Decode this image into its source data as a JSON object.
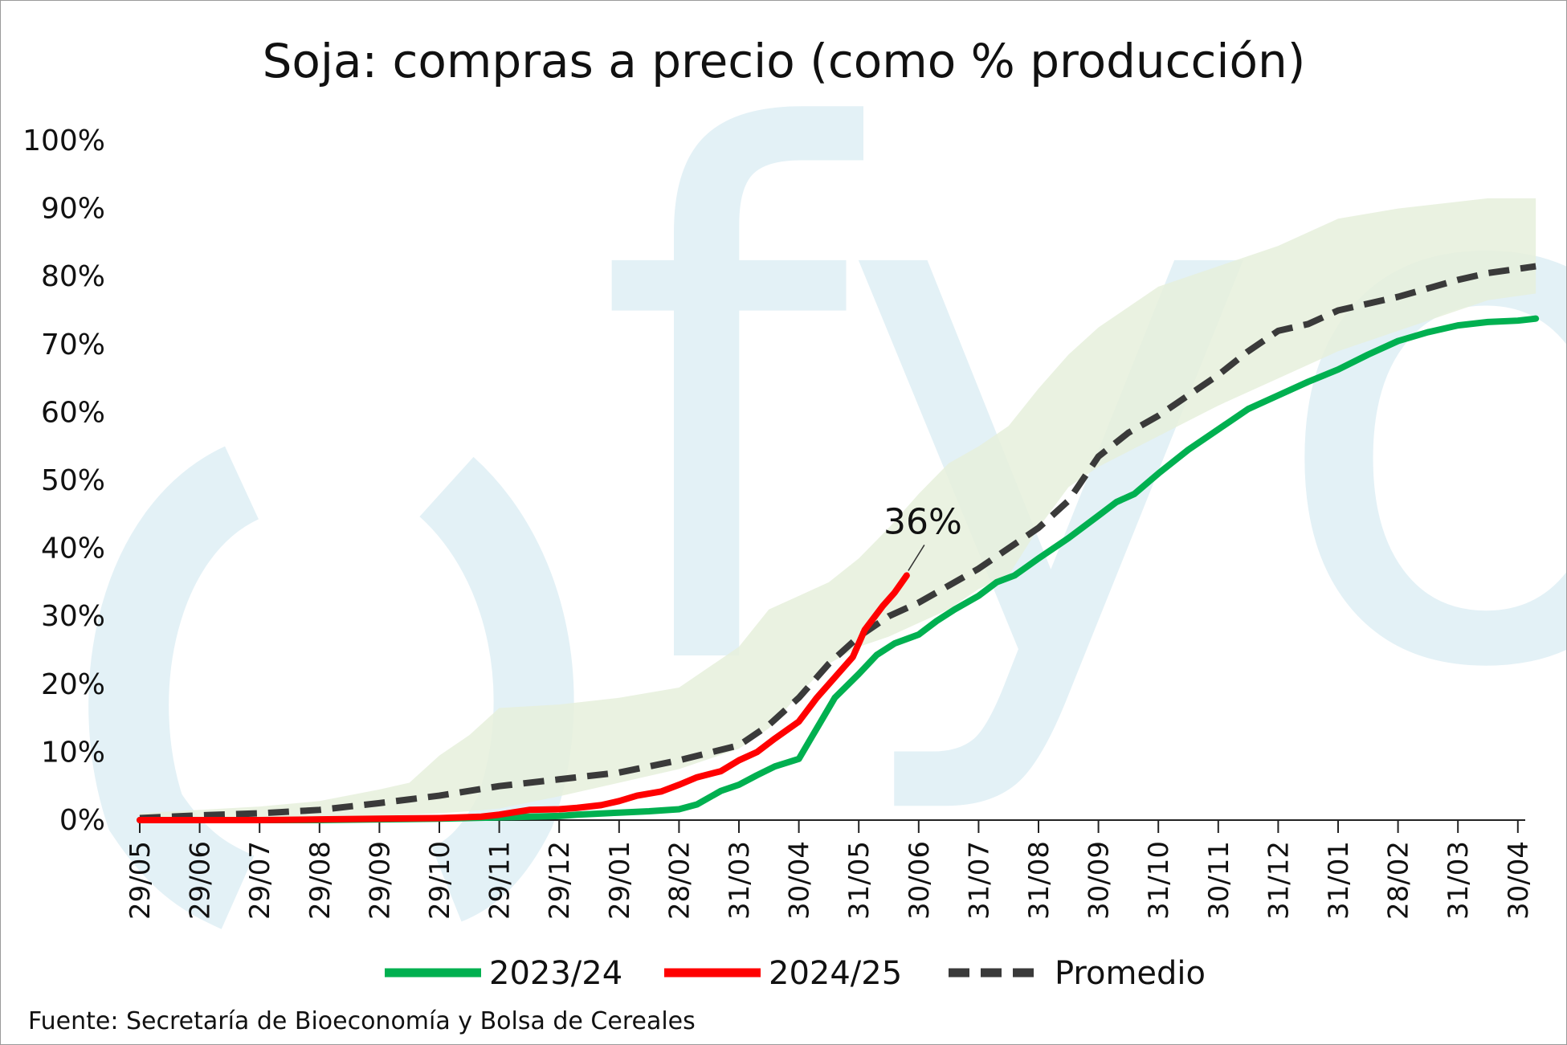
{
  "chart_data": {
    "type": "line",
    "title": "Soja: compras a precio (como % producción)",
    "y_ticks": [
      "0%",
      "10%",
      "20%",
      "30%",
      "40%",
      "50%",
      "60%",
      "70%",
      "80%",
      "90%",
      "100%"
    ],
    "ylim": [
      0,
      100
    ],
    "x_ticks": [
      "29/05",
      "29/06",
      "29/07",
      "29/08",
      "29/09",
      "29/10",
      "29/11",
      "29/12",
      "29/01",
      "28/02",
      "31/03",
      "30/04",
      "31/05",
      "30/06",
      "31/07",
      "31/08",
      "30/09",
      "31/10",
      "30/11",
      "31/12",
      "31/01",
      "28/02",
      "31/03",
      "30/04"
    ],
    "xlim": [
      0,
      23.3
    ],
    "grid": false,
    "legend_position": "bottom",
    "watermark": "fyo",
    "band": {
      "color": "#e6f0dc",
      "x": [
        0,
        1,
        2,
        3,
        4,
        4.5,
        5,
        5.5,
        6,
        7,
        8,
        9,
        10,
        10.5,
        11,
        11.5,
        12,
        12.5,
        13,
        13.5,
        14,
        14.5,
        15,
        15.5,
        16,
        17,
        18,
        19,
        20,
        21,
        22,
        22.5,
        23.3
      ],
      "lower": [
        0.2,
        0.3,
        0.4,
        0.5,
        0.6,
        0.8,
        1.0,
        1.3,
        1.7,
        3.5,
        5.5,
        7.5,
        10.5,
        13.5,
        18.5,
        23,
        25.5,
        27,
        29,
        31,
        34,
        36,
        43,
        49,
        52,
        56.5,
        61,
        65,
        69,
        72,
        75,
        76.5,
        77.5
      ],
      "upper": [
        1.0,
        1.5,
        2.0,
        2.8,
        4.5,
        5.5,
        9.5,
        12.5,
        16.5,
        17,
        18,
        19.5,
        25.5,
        31,
        33,
        35,
        38.5,
        43,
        48,
        52.5,
        55,
        58,
        63.5,
        68.5,
        72.5,
        78.5,
        81.5,
        84.5,
        88.5,
        90,
        91,
        91.5,
        91.5
      ]
    },
    "series": [
      {
        "name": "2023/24",
        "color": "#00b050",
        "style": "solid",
        "x": [
          0,
          1,
          2,
          3,
          4,
          5,
          6,
          7,
          7.3,
          8,
          8.5,
          9,
          9.3,
          9.7,
          10,
          10.3,
          10.6,
          11,
          11.3,
          11.6,
          12,
          12.3,
          12.6,
          13,
          13.3,
          13.6,
          14,
          14.3,
          14.6,
          15,
          15.5,
          16,
          16.3,
          16.6,
          17,
          17.5,
          18,
          18.5,
          19,
          19.5,
          20,
          20.5,
          21,
          21.5,
          22,
          22.5,
          23,
          23.3
        ],
        "y": [
          0,
          0,
          0,
          0,
          0.1,
          0.2,
          0.4,
          0.6,
          0.8,
          1.1,
          1.3,
          1.6,
          2.3,
          4.3,
          5.2,
          6.6,
          7.9,
          9.0,
          13.5,
          18.0,
          21.5,
          24.3,
          26.0,
          27.3,
          29.3,
          31.0,
          33.0,
          35.0,
          36.0,
          38.5,
          41.5,
          44.8,
          46.8,
          48.0,
          51.0,
          54.5,
          57.5,
          60.5,
          62.5,
          64.5,
          66.3,
          68.5,
          70.5,
          71.8,
          72.8,
          73.3,
          73.5,
          73.8
        ]
      },
      {
        "name": "2024/25",
        "color": "#ff0000",
        "style": "solid",
        "x": [
          0,
          1,
          2,
          3,
          4,
          5,
          5.7,
          6,
          6.5,
          7,
          7.3,
          7.7,
          8,
          8.3,
          8.7,
          9,
          9.3,
          9.7,
          10,
          10.3,
          10.6,
          11,
          11.3,
          11.6,
          11.9,
          12.1,
          12.4,
          12.6,
          12.8
        ],
        "y": [
          0,
          0,
          0,
          0.1,
          0.2,
          0.3,
          0.5,
          0.8,
          1.5,
          1.6,
          1.8,
          2.2,
          2.8,
          3.6,
          4.2,
          5.2,
          6.3,
          7.2,
          8.8,
          10.0,
          12.0,
          14.5,
          18.0,
          21.0,
          24.0,
          28.0,
          31.5,
          33.5,
          36.0
        ]
      },
      {
        "name": "Promedio",
        "color": "#3a3a3a",
        "style": "dashed",
        "x": [
          0,
          1,
          2,
          3,
          4,
          5,
          6,
          7,
          8,
          9,
          10,
          10.5,
          11,
          11.5,
          12,
          12.5,
          13,
          13.5,
          14,
          14.5,
          15,
          15.5,
          16,
          16.5,
          17,
          17.5,
          18,
          18.5,
          19,
          19.5,
          20,
          21,
          22,
          22.5,
          23.3
        ],
        "y": [
          0.3,
          0.7,
          1.0,
          1.5,
          2.5,
          3.6,
          5.0,
          6.0,
          7.0,
          8.8,
          11.0,
          14.0,
          18.0,
          23.0,
          27.0,
          30.0,
          32.0,
          34.5,
          37.0,
          40.0,
          43.0,
          47.0,
          53.5,
          57.0,
          59.5,
          62.5,
          65.5,
          69.0,
          72.0,
          73.0,
          75.0,
          77.0,
          79.5,
          80.5,
          81.5
        ]
      }
    ],
    "annotations": [
      {
        "text": "36%",
        "x": 12.8,
        "y": 36
      }
    ],
    "source": "Fuente: Secretaría de Bioeconomía y Bolsa de Cereales"
  }
}
